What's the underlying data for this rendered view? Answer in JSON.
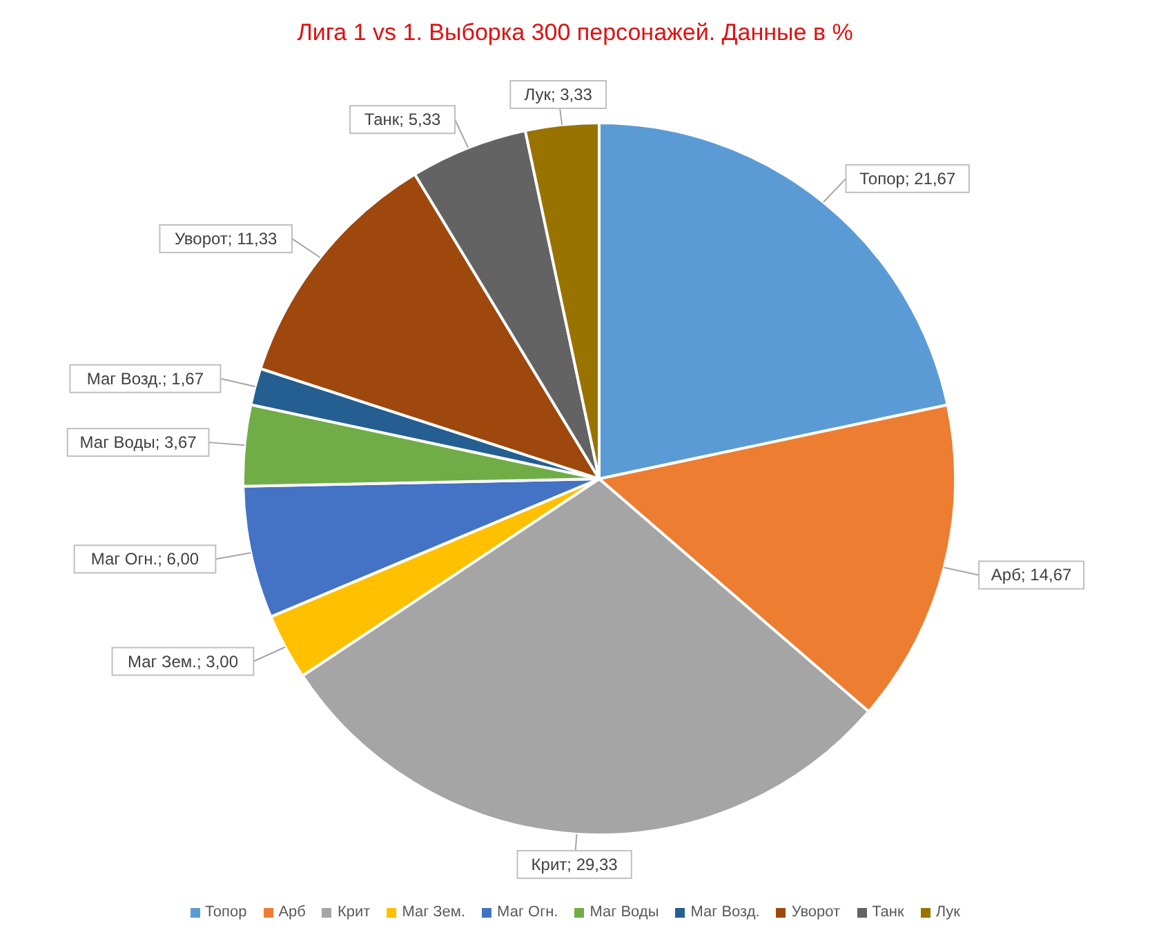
{
  "chart_data": {
    "type": "pie",
    "title": "Лига 1 vs 1. Выборка 300 персонажей. Данные в %",
    "categories": [
      "Топор",
      "Арб",
      "Крит",
      "Маг Зем.",
      "Маг Огн.",
      "Маг Воды",
      "Маг Возд.",
      "Уворот",
      "Танк",
      "Лук"
    ],
    "values": [
      21.67,
      14.67,
      29.33,
      3.0,
      6.0,
      3.67,
      1.67,
      11.33,
      5.33,
      3.33
    ],
    "value_labels": [
      "Топор; 21,67",
      "Арб; 14,67",
      "Крит; 29,33",
      "Маг Зем.; 3,00",
      "Маг Огн.; 6,00",
      "Маг Воды; 3,67",
      "Маг Возд.; 1,67",
      "Уворот; 11,33",
      "Танк; 5,33",
      "Лук; 3,33"
    ],
    "colors": [
      "#5b9bd5",
      "#ed7d31",
      "#a5a5a5",
      "#ffc000",
      "#4472c4",
      "#70ad47",
      "#255e91",
      "#9e480e",
      "#636363",
      "#997300"
    ],
    "legend": "bottom"
  }
}
